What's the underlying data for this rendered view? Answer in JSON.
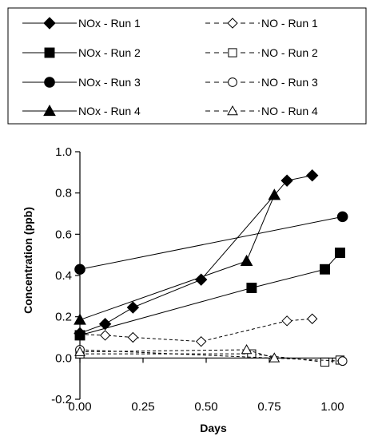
{
  "chart_data": {
    "type": "line",
    "title": "",
    "xlabel": "Days",
    "ylabel": "Concentration (ppb)",
    "xlim": [
      0,
      1.05
    ],
    "ylim": [
      -0.2,
      1.0
    ],
    "x_ticks": [
      "0.00",
      "0.25",
      "0.50",
      "0.75",
      "1.00"
    ],
    "y_ticks": [
      "-0.2",
      "0.0",
      "0.2",
      "0.4",
      "0.6",
      "0.8",
      "1.0"
    ],
    "grid": false,
    "legend": "top",
    "series": [
      {
        "name": "NOx - Run 1",
        "marker": "diamond",
        "filled": true,
        "dash": false,
        "x": [
          0.0,
          0.1,
          0.21,
          0.48,
          0.82,
          0.92
        ],
        "y": [
          0.12,
          0.165,
          0.245,
          0.38,
          0.86,
          0.885
        ]
      },
      {
        "name": "NO - Run 1",
        "marker": "diamond",
        "filled": false,
        "dash": true,
        "x": [
          0.0,
          0.1,
          0.21,
          0.48,
          0.82,
          0.92
        ],
        "y": [
          0.115,
          0.11,
          0.1,
          0.08,
          0.18,
          0.19
        ]
      },
      {
        "name": "NOx - Run 2",
        "marker": "square",
        "filled": true,
        "dash": false,
        "x": [
          0.0,
          0.68,
          0.97,
          1.03
        ],
        "y": [
          0.11,
          0.34,
          0.43,
          0.51
        ]
      },
      {
        "name": "NO - Run 2",
        "marker": "square",
        "filled": false,
        "dash": true,
        "x": [
          0.0,
          0.68,
          0.97,
          1.03
        ],
        "y": [
          0.02,
          0.02,
          -0.02,
          -0.01
        ]
      },
      {
        "name": "NOx - Run 3",
        "marker": "circle",
        "filled": true,
        "dash": false,
        "x": [
          0.0,
          1.04
        ],
        "y": [
          0.43,
          0.685
        ]
      },
      {
        "name": "NO - Run 3",
        "marker": "circle",
        "filled": false,
        "dash": true,
        "x": [
          0.0,
          1.04
        ],
        "y": [
          0.04,
          -0.015
        ]
      },
      {
        "name": "NOx - Run 4",
        "marker": "triangle",
        "filled": true,
        "dash": false,
        "x": [
          0.0,
          0.66,
          0.77
        ],
        "y": [
          0.185,
          0.47,
          0.79
        ]
      },
      {
        "name": "NO - Run 4",
        "marker": "triangle",
        "filled": false,
        "dash": true,
        "x": [
          0.0,
          0.66,
          0.77
        ],
        "y": [
          0.03,
          0.04,
          0.0
        ]
      }
    ]
  }
}
